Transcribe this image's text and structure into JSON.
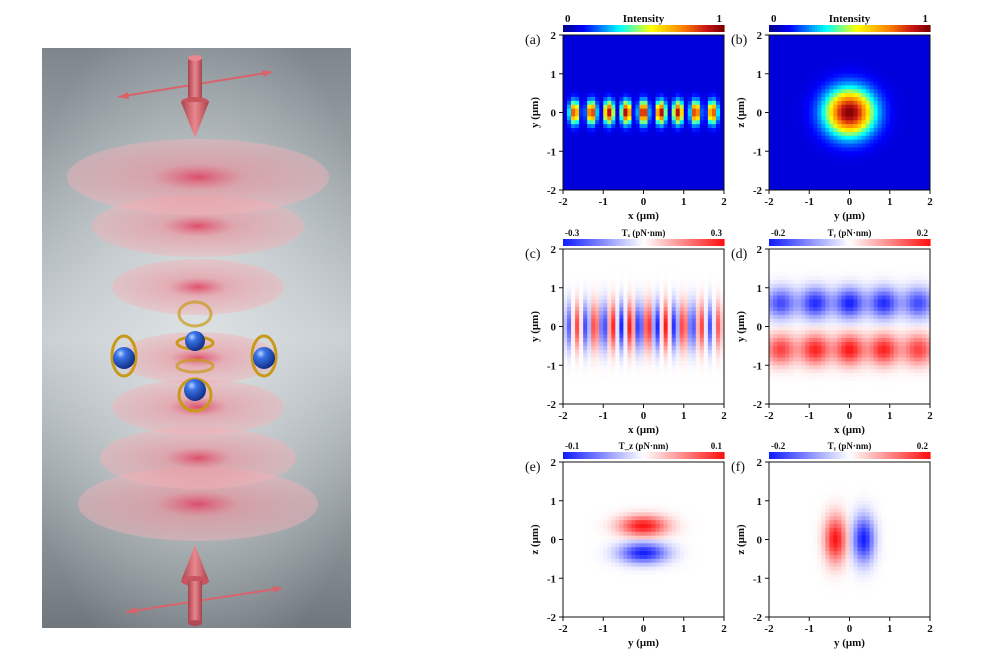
{
  "illustration": {
    "colors": {
      "background_top": "#7d858b",
      "background_mid": "#b9c0c3",
      "beam": "#e8868f",
      "particle": "#2a5fd6",
      "arrow": "#d9626b",
      "ring": "#c99a1a"
    }
  },
  "panels": [
    {
      "id": "a",
      "label": "(a)",
      "cbar_title": "Intensity",
      "cbar_min": "0",
      "cbar_max": "1",
      "colormap": "jet",
      "xlabel": "x (μm)",
      "ylabel": "y (μm)",
      "field": "intensity-xy"
    },
    {
      "id": "b",
      "label": "(b)",
      "cbar_title": "Intensity",
      "cbar_min": "0",
      "cbar_max": "1",
      "colormap": "jet",
      "xlabel": "y (μm)",
      "ylabel": "z (μm)",
      "field": "intensity-yz"
    },
    {
      "id": "c",
      "label": "(c)",
      "cbar_title": "Tₓ (pN·nm)",
      "cbar_min": "-0.3",
      "cbar_max": "0.3",
      "colormap": "bwr",
      "xlabel": "x (μm)",
      "ylabel": "y (μm)",
      "field": "tx-xy"
    },
    {
      "id": "d",
      "label": "(d)",
      "cbar_title": "Tᵧ (pN·nm)",
      "cbar_min": "-0.2",
      "cbar_max": "0.2",
      "colormap": "bwr",
      "xlabel": "x (μm)",
      "ylabel": "y (μm)",
      "field": "ty-xy"
    },
    {
      "id": "e",
      "label": "(e)",
      "cbar_title": "T_z (pN·nm)",
      "cbar_min": "-0.1",
      "cbar_max": "0.1",
      "colormap": "bwr",
      "xlabel": "y (μm)",
      "ylabel": "z (μm)",
      "field": "tz-yz"
    },
    {
      "id": "f",
      "label": "(f)",
      "cbar_title": "Tᵧ (pN·nm)",
      "cbar_min": "-0.2",
      "cbar_max": "0.2",
      "colormap": "bwr",
      "xlabel": "y (μm)",
      "ylabel": "z (μm)",
      "field": "ty-yz"
    }
  ],
  "axes": {
    "x_ticks": [
      "-2",
      "-1",
      "0",
      "1",
      "2"
    ],
    "y_ticks": [
      "2",
      "1",
      "0",
      "-1",
      "-2"
    ],
    "range": [
      -2,
      2
    ]
  }
}
